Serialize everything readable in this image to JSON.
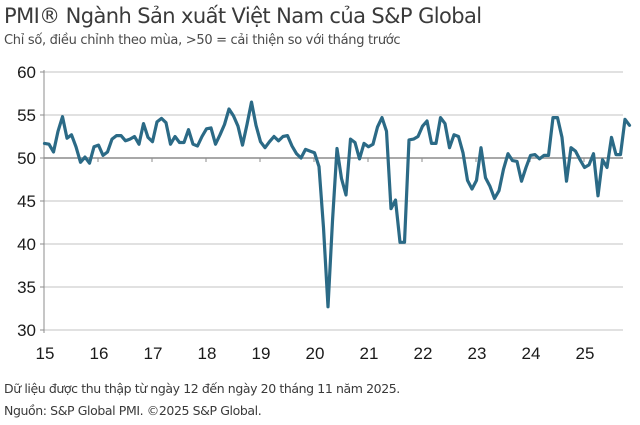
{
  "title": "PMI® Ngành Sản xuất Việt Nam của S&P Global",
  "subtitle": "Chỉ số, điều chỉnh theo mùa, >50 = cải thiện so với tháng trước",
  "footnote_1": "Dữ liệu được thu thập từ ngày 12 đến ngày 20 tháng 11 năm 2025.",
  "footnote_2": "Nguồn: S&P Global PMI. ©2025 S&P Global.",
  "colors": {
    "line": "#2b6a86",
    "grid": "#cfcfcf",
    "axis": "#8c8c8c",
    "fifty_line": "#8c8c8c"
  },
  "chart_data": {
    "type": "line",
    "title": "PMI® Ngành Sản xuất Việt Nam của S&P Global",
    "subtitle": "Chỉ số, điều chỉnh theo mùa, >50 = cải thiện so với tháng trước",
    "xlabel": "",
    "ylabel": "",
    "ylim": [
      30,
      60
    ],
    "yticks": [
      "30",
      "35",
      "40",
      "45",
      "50",
      "55",
      "60"
    ],
    "xticks": [
      "15",
      "16",
      "17",
      "18",
      "19",
      "20",
      "21",
      "22",
      "23",
      "24",
      "25"
    ],
    "x_start": "2015-01",
    "x_end": "2025-11",
    "frequency": "monthly",
    "grid": true,
    "legend": "none",
    "series": [
      {
        "name": "PMI",
        "values": [
          51.7,
          51.6,
          50.7,
          53.1,
          54.8,
          52.3,
          52.7,
          51.3,
          49.5,
          50.1,
          49.4,
          51.3,
          51.5,
          50.3,
          50.7,
          52.2,
          52.6,
          52.6,
          52.0,
          52.2,
          52.5,
          51.6,
          54.0,
          52.4,
          51.9,
          54.2,
          54.6,
          54.1,
          51.6,
          52.5,
          51.8,
          51.8,
          53.3,
          51.6,
          51.4,
          52.5,
          53.4,
          53.5,
          51.6,
          52.7,
          53.9,
          55.7,
          54.9,
          53.7,
          51.5,
          53.9,
          56.5,
          53.8,
          51.9,
          51.2,
          51.9,
          52.5,
          52.0,
          52.5,
          52.6,
          51.4,
          50.5,
          50.0,
          51.0,
          50.8,
          50.6,
          49.0,
          41.9,
          32.7,
          42.7,
          51.1,
          47.6,
          45.7,
          52.2,
          51.8,
          49.9,
          51.7,
          51.3,
          51.6,
          53.6,
          54.7,
          53.1,
          44.1,
          45.1,
          40.2,
          40.2,
          52.1,
          52.2,
          52.5,
          53.7,
          54.3,
          51.7,
          51.7,
          54.7,
          54.0,
          51.2,
          52.7,
          52.5,
          50.6,
          47.4,
          46.4,
          47.4,
          51.2,
          47.7,
          46.7,
          45.3,
          46.2,
          48.7,
          50.5,
          49.7,
          49.6,
          47.3,
          48.9,
          50.3,
          50.4,
          49.9,
          50.3,
          50.3,
          54.7,
          54.7,
          52.4,
          47.3,
          51.2,
          50.8,
          49.8,
          48.9,
          49.2,
          50.5,
          45.6,
          49.8,
          48.9,
          52.4,
          50.4,
          50.4,
          54.5,
          53.8
        ]
      }
    ]
  }
}
